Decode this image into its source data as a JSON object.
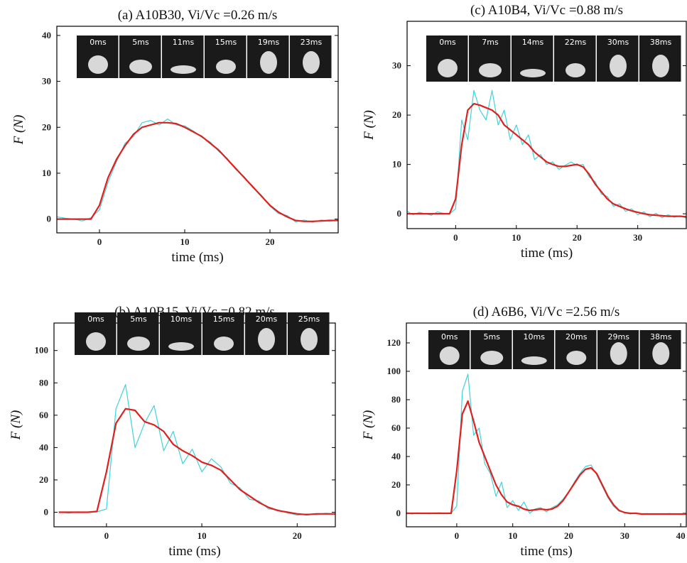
{
  "chart_data": [
    {
      "type": "line",
      "title": "(a) A10B30, Vi/Vc =0.26 m/s",
      "x_label": "time (ms)",
      "y_label": "F (N)",
      "frames": [
        "0ms",
        "5ms",
        "11ms",
        "15ms",
        "19ms",
        "23ms"
      ],
      "x": [
        -5,
        -4,
        -3,
        -2,
        -1,
        0,
        1,
        2,
        3,
        4,
        5,
        6,
        7,
        8,
        9,
        10,
        11,
        12,
        13,
        14,
        15,
        16,
        17,
        18,
        19,
        20,
        21,
        22,
        23,
        24,
        25,
        26,
        27,
        28
      ],
      "series": [
        {
          "color": "#3fd3dc",
          "values": [
            0.5,
            0.2,
            0,
            -0.4,
            0.3,
            2,
            8,
            12.5,
            16.5,
            18,
            21,
            21.5,
            20.5,
            21.8,
            20.5,
            20.3,
            19.2,
            17.8,
            16.8,
            14.7,
            13.2,
            10.8,
            9.2,
            6.8,
            5.2,
            2.8,
            1.2,
            0.8,
            -0.6,
            -0.2,
            -0.7,
            -0.2,
            -0.5,
            -0.1
          ]
        },
        {
          "color": "#e0201c",
          "values": [
            0,
            0,
            0,
            0,
            0,
            3,
            9,
            13,
            16,
            18.5,
            20,
            20.5,
            21,
            21,
            20.8,
            20,
            19,
            18,
            16.5,
            15,
            13,
            11,
            9,
            7,
            5,
            3,
            1.5,
            0.5,
            -0.3,
            -0.5,
            -0.5,
            -0.4,
            -0.3,
            -0.3
          ]
        }
      ],
      "xlim": [
        -5,
        28
      ],
      "ylim": [
        -3,
        42
      ],
      "xticks": [
        0,
        10,
        20
      ],
      "yticks": [
        0,
        10,
        20,
        30,
        40
      ]
    },
    {
      "type": "line",
      "title": "(c) A10B4, Vi/Vc =0.88 m/s",
      "x_label": "time (ms)",
      "y_label": "F (N)",
      "frames": [
        "0ms",
        "7ms",
        "14ms",
        "22ms",
        "30ms",
        "38ms"
      ],
      "x": [
        -8,
        -7,
        -6,
        -5,
        -4,
        -3,
        -2,
        -1,
        0,
        1,
        2,
        3,
        4,
        5,
        6,
        7,
        8,
        9,
        10,
        11,
        12,
        13,
        14,
        15,
        16,
        17,
        18,
        19,
        20,
        21,
        22,
        23,
        24,
        25,
        26,
        27,
        28,
        29,
        30,
        31,
        32,
        33,
        34,
        35,
        36,
        37,
        38
      ],
      "series": [
        {
          "color": "#3fd3dc",
          "values": [
            0.5,
            -0.2,
            0.3,
            0,
            -0.3,
            0.4,
            0.1,
            0,
            1,
            19,
            15,
            25,
            21,
            19,
            25,
            18,
            21,
            15,
            18,
            14,
            16,
            11,
            12,
            10,
            10.5,
            9,
            9.8,
            10.5,
            9.8,
            10,
            7.5,
            6.5,
            4,
            3.5,
            1.5,
            2,
            0.5,
            1,
            -0.2,
            0.4,
            -0.6,
            0.1,
            -0.8,
            -0.2,
            -0.7,
            -0.4,
            -0.9
          ]
        },
        {
          "color": "#e0201c",
          "values": [
            0,
            0,
            0,
            0,
            0,
            0,
            0,
            0,
            3,
            14,
            21,
            22.3,
            22,
            21.5,
            21,
            20,
            18,
            17,
            16,
            15,
            14,
            12.5,
            11.5,
            10.5,
            10,
            9.6,
            9.6,
            9.8,
            10,
            9.5,
            8,
            6,
            4.5,
            3,
            2,
            1.5,
            1,
            0.6,
            0.3,
            0,
            -0.2,
            -0.3,
            -0.4,
            -0.5,
            -0.5,
            -0.5,
            -0.6
          ]
        }
      ],
      "xlim": [
        -8,
        38
      ],
      "ylim": [
        -3,
        39
      ],
      "xticks": [
        0,
        10,
        20,
        30
      ],
      "yticks": [
        0,
        10,
        20,
        30
      ]
    },
    {
      "type": "line",
      "title": "(b) A10B15, Vi/Vc =0.82 m/s",
      "x_label": "time (ms)",
      "y_label": "F (N)",
      "frames": [
        "0ms",
        "5ms",
        "10ms",
        "15ms",
        "20ms",
        "25ms"
      ],
      "x": [
        -5,
        -4,
        -3,
        -2,
        -1,
        0,
        1,
        2,
        3,
        4,
        5,
        6,
        7,
        8,
        9,
        10,
        11,
        12,
        13,
        14,
        15,
        16,
        17,
        18,
        19,
        20,
        21,
        22,
        23,
        24
      ],
      "series": [
        {
          "color": "#3fd3dc",
          "values": [
            0.3,
            -0.5,
            0.2,
            0,
            0.2,
            2,
            64,
            79,
            40,
            55,
            66,
            38,
            50,
            30,
            39,
            25,
            33,
            28,
            18,
            15,
            8,
            7,
            2,
            1.5,
            -0.5,
            -1.8,
            -1,
            -1.5,
            -0.6,
            -1.2
          ]
        },
        {
          "color": "#e0201c",
          "values": [
            0,
            0,
            0,
            0,
            0.5,
            25,
            55,
            64,
            63,
            56,
            54,
            50,
            42,
            38,
            35,
            31,
            29,
            26,
            20,
            14,
            10,
            6,
            3,
            1,
            0,
            -1,
            -1.5,
            -1,
            -1,
            -1
          ]
        }
      ],
      "xlim": [
        -5.5,
        24
      ],
      "ylim": [
        -9,
        117
      ],
      "xticks": [
        0,
        10,
        20
      ],
      "yticks": [
        0,
        20,
        40,
        60,
        80,
        100
      ]
    },
    {
      "type": "line",
      "title": "(d) A6B6, Vi/Vc =2.56 m/s",
      "x_label": "time (ms)",
      "y_label": "F (N)",
      "frames": [
        "0ms",
        "5ms",
        "10ms",
        "20ms",
        "29ms",
        "38ms"
      ],
      "x": [
        -9,
        -8,
        -7,
        -6,
        -5,
        -4,
        -3,
        -2,
        -1,
        0,
        1,
        2,
        3,
        4,
        5,
        6,
        7,
        8,
        9,
        10,
        11,
        12,
        13,
        14,
        15,
        16,
        17,
        18,
        19,
        20,
        21,
        22,
        23,
        24,
        25,
        26,
        27,
        28,
        29,
        30,
        31,
        32,
        33,
        34,
        35,
        36,
        37,
        38,
        39,
        40,
        41
      ],
      "series": [
        {
          "color": "#3fd3dc",
          "values": [
            0.5,
            -0.5,
            0.3,
            0,
            -0.3,
            0.2,
            0.4,
            -0.2,
            0,
            5,
            86,
            98,
            55,
            60,
            35,
            28,
            12,
            22,
            4,
            9,
            2,
            8,
            0,
            3,
            4,
            1,
            4,
            6,
            10,
            15,
            22,
            28,
            33,
            34,
            27,
            19,
            11,
            5,
            1.5,
            0.8,
            -0.5,
            0.3,
            -0.8,
            -0.2,
            -0.6,
            -0.3,
            -0.7,
            -0.2,
            -0.5,
            -0.8,
            -0.3
          ]
        },
        {
          "color": "#e0201c",
          "values": [
            0,
            0,
            0,
            0,
            0,
            0,
            0,
            0,
            0,
            30,
            70,
            79,
            65,
            50,
            40,
            30,
            20,
            13,
            8,
            6,
            5,
            3,
            2,
            2.5,
            3,
            2.5,
            3,
            5,
            9,
            15,
            21,
            27,
            31,
            32,
            28,
            20,
            12,
            6,
            2,
            0.5,
            0,
            0,
            -0.5,
            -0.5,
            -0.5,
            -0.5,
            -0.5,
            -0.5,
            -0.5,
            -0.5,
            -0.5
          ]
        }
      ],
      "xlim": [
        -9,
        41
      ],
      "ylim": [
        -9.5,
        134
      ],
      "xticks": [
        0,
        10,
        20,
        30,
        40
      ],
      "yticks": [
        0,
        20,
        40,
        60,
        80,
        100,
        120
      ]
    }
  ]
}
